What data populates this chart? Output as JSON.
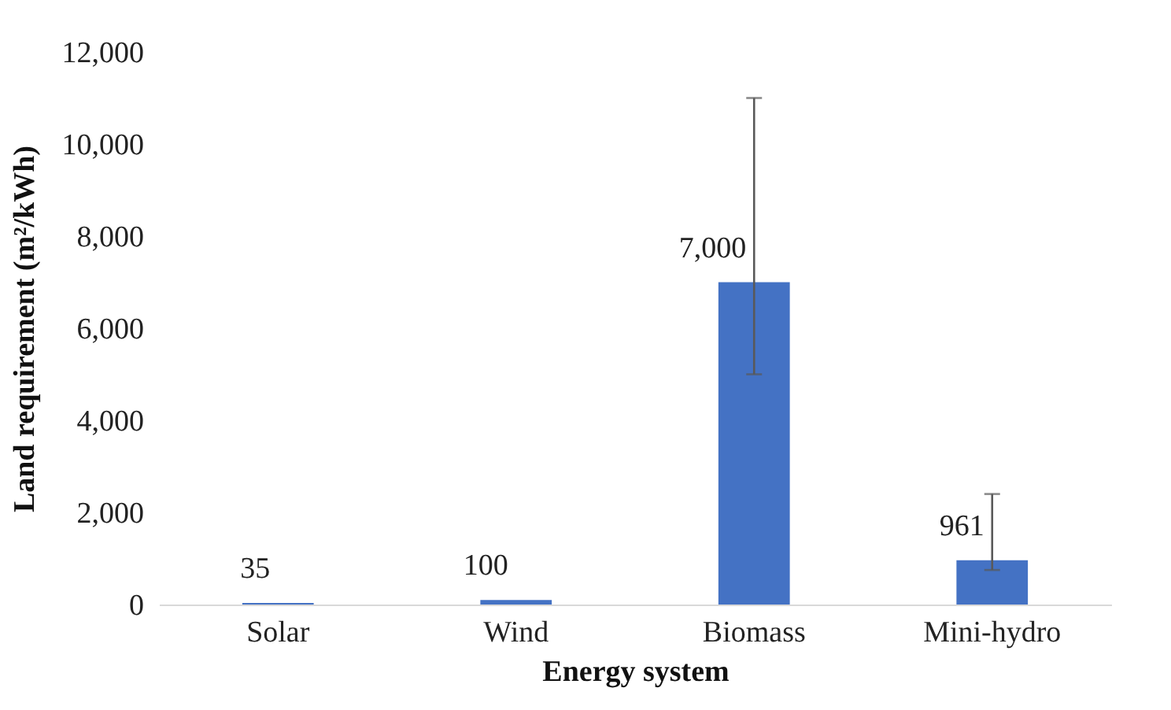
{
  "chart_data": {
    "type": "bar",
    "xlabel": "Energy system",
    "ylabel": "Land requirement (m²/kWh)",
    "categories": [
      "Solar",
      "Wind",
      "Biomass",
      "Mini-hydro"
    ],
    "values": [
      35,
      100,
      7000,
      961
    ],
    "errors": [
      null,
      null,
      [
        5000,
        11000
      ],
      [
        750,
        2400
      ]
    ],
    "color": "#4472c4",
    "value_labels": [
      "35",
      "100",
      "7,000",
      "961"
    ],
    "ylim": [
      0,
      12000
    ],
    "yticks": [
      0,
      {
        "value": 2000,
        "label": "2,000"
      },
      {
        "value": 4000,
        "label": "4,000"
      },
      {
        "value": 6000,
        "label": "6,000"
      },
      {
        "value": 8000,
        "label": "8,000"
      },
      {
        "value": 10000,
        "label": "10,000"
      },
      {
        "value": 12000,
        "label": "12,000"
      }
    ],
    "grid": false
  }
}
